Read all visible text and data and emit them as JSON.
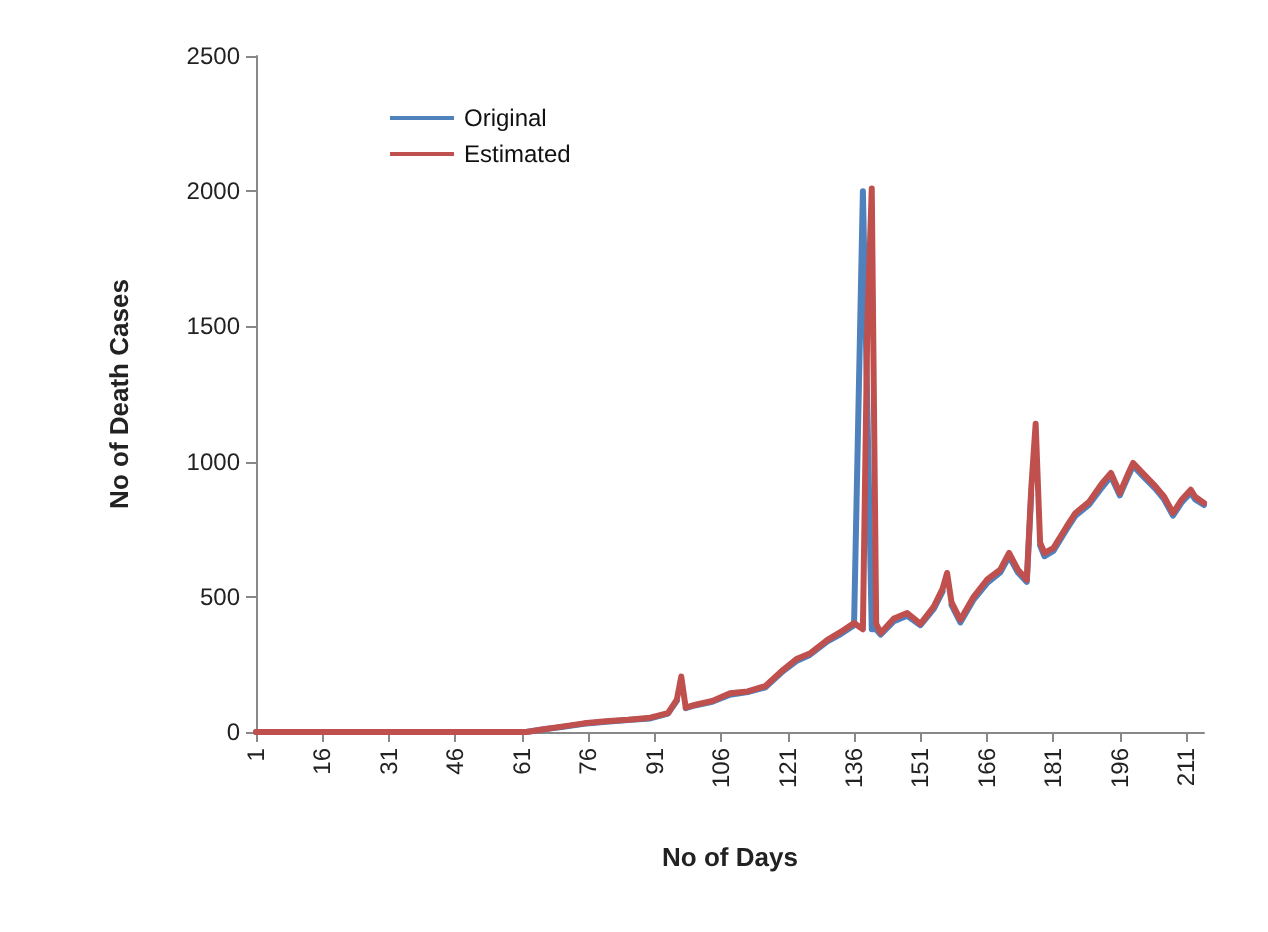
{
  "chart_data": {
    "type": "line",
    "xlabel": "No of Days",
    "ylabel": "No of Death Cases",
    "x": [
      1,
      62,
      66,
      70,
      75,
      80,
      85,
      90,
      94,
      96,
      97,
      98,
      100,
      104,
      108,
      112,
      116,
      120,
      123,
      126,
      130,
      133,
      136,
      138,
      139,
      140,
      141,
      142,
      145,
      148,
      151,
      154,
      156,
      157,
      158,
      160,
      163,
      166,
      169,
      171,
      173,
      175,
      176,
      177,
      178,
      179,
      181,
      184,
      186,
      189,
      192,
      194,
      196,
      198,
      199,
      201,
      204,
      206,
      208,
      210,
      212,
      213,
      215
    ],
    "series": [
      {
        "name": "Original",
        "color": "#4f81bd",
        "values": [
          0,
          0,
          10,
          18,
          30,
          38,
          44,
          50,
          68,
          115,
          null,
          88,
          98,
          112,
          138,
          148,
          165,
          225,
          262,
          285,
          335,
          362,
          395,
          2000,
          1200,
          380,
          380,
          360,
          410,
          430,
          395,
          455,
          520,
          null,
          470,
          405,
          490,
          550,
          590,
          650,
          590,
          555,
          880,
          null,
          690,
          650,
          670,
          750,
          800,
          840,
          905,
          945,
          875,
          950,
          985,
          950,
          900,
          860,
          800,
          850,
          885,
          860,
          840
        ]
      },
      {
        "name": "Estimated",
        "color": "#c0504d",
        "values": [
          0,
          0,
          10,
          20,
          32,
          40,
          45,
          53,
          70,
          120,
          205,
          90,
          100,
          115,
          143,
          150,
          170,
          230,
          270,
          290,
          341,
          370,
          403,
          380,
          1500,
          2010,
          400,
          366,
          420,
          440,
          400,
          464,
          530,
          588,
          480,
          415,
          500,
          563,
          600,
          662,
          600,
          563,
          900,
          1140,
          700,
          662,
          680,
          760,
          810,
          850,
          920,
          958,
          884,
          960,
          995,
          960,
          909,
          870,
          810,
          860,
          896,
          870,
          847
        ]
      }
    ],
    "xlim": [
      1,
      215
    ],
    "xticks": [
      1,
      16,
      31,
      46,
      61,
      76,
      91,
      106,
      121,
      136,
      151,
      166,
      181,
      196,
      211
    ],
    "ylim": [
      0,
      2500
    ],
    "yticks": [
      0,
      500,
      1000,
      1500,
      2000,
      2500
    ],
    "grid": false,
    "legend": "top left",
    "marker": "none",
    "line_style": "solid"
  }
}
